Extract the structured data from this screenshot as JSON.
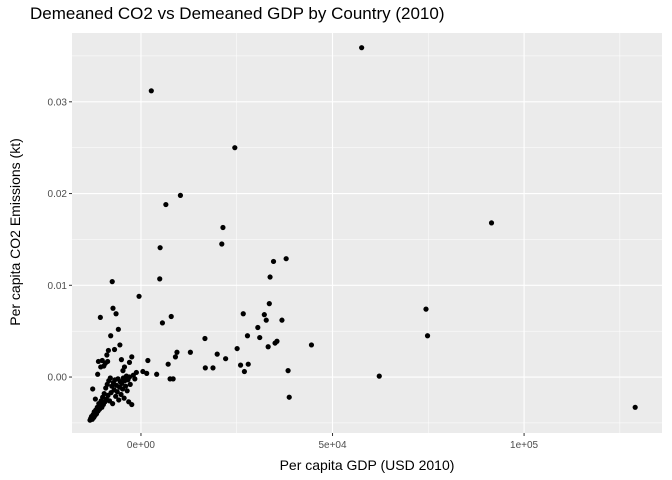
{
  "chart_data": {
    "type": "scatter",
    "title": "Demeaned CO2 vs Demeaned GDP by Country (2010)",
    "xlabel": "Per capita GDP (USD 2010)",
    "ylabel": "Per capita CO2 Emissions (kt)",
    "xlim": [
      -18000,
      136000
    ],
    "ylim": [
      -0.0061,
      0.0375
    ],
    "x_ticks": [
      {
        "value": 0,
        "label": "0e+00"
      },
      {
        "value": 50000,
        "label": "5e+04"
      },
      {
        "value": 100000,
        "label": "1e+05"
      }
    ],
    "y_ticks": [
      {
        "value": 0.0,
        "label": "0.00"
      },
      {
        "value": 0.01,
        "label": "0.01"
      },
      {
        "value": 0.02,
        "label": "0.02"
      },
      {
        "value": 0.03,
        "label": "0.03"
      }
    ],
    "grid": true,
    "colors": {
      "panel": "#ebebeb",
      "grid_major": "#ffffff",
      "point": "#000000"
    },
    "points": [
      [
        -13300,
        -0.0047
      ],
      [
        -13100,
        -0.0045
      ],
      [
        -12900,
        -0.0043
      ],
      [
        -12700,
        -0.0046
      ],
      [
        -12500,
        -0.0041
      ],
      [
        -12300,
        -0.0044
      ],
      [
        -12200,
        -0.0038
      ],
      [
        -12000,
        -0.0042
      ],
      [
        -11800,
        -0.0036
      ],
      [
        -11600,
        -0.004
      ],
      [
        -11400,
        -0.0033
      ],
      [
        -11200,
        -0.0037
      ],
      [
        -11000,
        -0.0029
      ],
      [
        -10800,
        -0.0035
      ],
      [
        -10600,
        -0.0031
      ],
      [
        -10400,
        -0.0026
      ],
      [
        -10200,
        -0.0033
      ],
      [
        -10000,
        -0.0022
      ],
      [
        -9800,
        -0.003
      ],
      [
        -9600,
        -0.0018
      ],
      [
        -9400,
        -0.0027
      ],
      [
        -9200,
        -0.0012
      ],
      [
        -9000,
        -0.0024
      ],
      [
        -8800,
        -0.0008
      ],
      [
        -8600,
        -0.002
      ],
      [
        -8400,
        -0.0004
      ],
      [
        -8200,
        -0.0026
      ],
      [
        -8000,
        -0.0001
      ],
      [
        -7800,
        -0.0017
      ],
      [
        -7600,
        -0.001
      ],
      [
        -7400,
        -0.0029
      ],
      [
        -7200,
        -0.0006
      ],
      [
        -7000,
        -0.0014
      ],
      [
        -6800,
        -0.0003
      ],
      [
        -6600,
        -0.0021
      ],
      [
        -6400,
        -0.0009
      ],
      [
        -6200,
        -0.0016
      ],
      [
        -6000,
        -0.0002
      ],
      [
        -5800,
        -0.0025
      ],
      [
        -5600,
        -0.0011
      ],
      [
        -5400,
        -0.0005
      ],
      [
        -5200,
        -0.0019
      ],
      [
        -5000,
        -0.0007
      ],
      [
        -4800,
        -0.0013
      ],
      [
        -4600,
        -0.0001
      ],
      [
        -4400,
        -0.0023
      ],
      [
        -4200,
        -0.0004
      ],
      [
        -4000,
        -0.001
      ],
      [
        -3800,
        0.0001
      ],
      [
        -3600,
        -0.0015
      ],
      [
        -3400,
        -0.0003
      ],
      [
        -3200,
        -0.0027
      ],
      [
        -3000,
        0.0
      ],
      [
        -2800,
        -0.0008
      ],
      [
        -2400,
        -0.003
      ],
      [
        -2000,
        0.0002
      ],
      [
        -1600,
        -0.0002
      ],
      [
        -1200,
        0.0005
      ],
      [
        -12600,
        -0.0013
      ],
      [
        -11900,
        -0.0024
      ],
      [
        -11300,
        0.0003
      ],
      [
        -11100,
        0.0017
      ],
      [
        -10500,
        0.0011
      ],
      [
        -10100,
        0.0018
      ],
      [
        -9700,
        0.0012
      ],
      [
        -9300,
        0.0015
      ],
      [
        -8900,
        0.0024
      ],
      [
        -8700,
        0.0017
      ],
      [
        -8500,
        0.0029
      ],
      [
        -7900,
        0.0045
      ],
      [
        -7500,
        0.0104
      ],
      [
        -7300,
        0.0075
      ],
      [
        -6900,
        0.003
      ],
      [
        -6500,
        0.0069
      ],
      [
        -5900,
        0.0052
      ],
      [
        -5500,
        0.0035
      ],
      [
        -5100,
        0.0019
      ],
      [
        -4700,
        0.0007
      ],
      [
        -10600,
        0.0065
      ],
      [
        -4300,
        0.0011
      ],
      [
        -3000,
        0.0016
      ],
      [
        -2400,
        0.0022
      ],
      [
        -500,
        0.0088
      ],
      [
        500,
        0.0006
      ],
      [
        1500,
        0.0004
      ],
      [
        1800,
        0.0018
      ],
      [
        2700,
        0.0312
      ],
      [
        4100,
        0.0003
      ],
      [
        4900,
        0.0107
      ],
      [
        5000,
        0.0141
      ],
      [
        5600,
        0.0059
      ],
      [
        6500,
        0.0188
      ],
      [
        7100,
        0.0014
      ],
      [
        7600,
        -0.0002
      ],
      [
        7900,
        0.0066
      ],
      [
        8400,
        -0.0002
      ],
      [
        9000,
        0.0022
      ],
      [
        9400,
        0.0027
      ],
      [
        10300,
        0.0198
      ],
      [
        12900,
        0.0027
      ],
      [
        16700,
        0.0042
      ],
      [
        16800,
        0.001
      ],
      [
        18800,
        0.001
      ],
      [
        19900,
        0.0025
      ],
      [
        21100,
        0.0145
      ],
      [
        21400,
        0.0163
      ],
      [
        22100,
        0.002
      ],
      [
        24500,
        0.025
      ],
      [
        25100,
        0.0031
      ],
      [
        26000,
        0.0013
      ],
      [
        26700,
        0.0069
      ],
      [
        27000,
        0.0006
      ],
      [
        27800,
        0.0045
      ],
      [
        28000,
        0.0014
      ],
      [
        30500,
        0.0054
      ],
      [
        31000,
        0.0043
      ],
      [
        32200,
        0.0068
      ],
      [
        32700,
        0.0062
      ],
      [
        33200,
        0.0033
      ],
      [
        33500,
        0.008
      ],
      [
        33700,
        0.0109
      ],
      [
        34600,
        0.0126
      ],
      [
        35000,
        0.0037
      ],
      [
        35500,
        0.0039
      ],
      [
        36800,
        0.0062
      ],
      [
        37900,
        0.0129
      ],
      [
        38400,
        0.0007
      ],
      [
        38700,
        -0.0022
      ],
      [
        44500,
        0.0035
      ],
      [
        57600,
        0.0359
      ],
      [
        62200,
        0.0001
      ],
      [
        74400,
        0.0074
      ],
      [
        74800,
        0.0045
      ],
      [
        91500,
        0.0168
      ],
      [
        129000,
        -0.0033
      ]
    ]
  }
}
